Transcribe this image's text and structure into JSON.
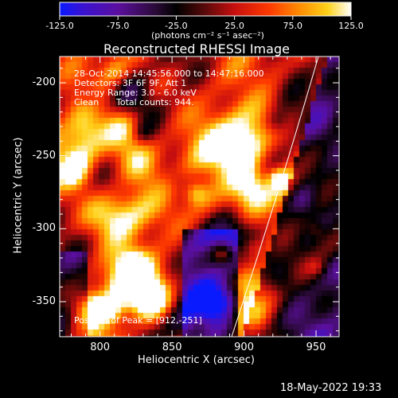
{
  "colorbar": {
    "ticks": [
      "-125.0",
      "-75.0",
      "-25.0",
      "25.0",
      "75.0",
      "125.0"
    ],
    "tick_values": [
      -125,
      -75,
      -25,
      25,
      75,
      125
    ],
    "units_label": "(photons cm⁻² s⁻¹ asec⁻²)",
    "colormap": "black-purple-red-orange-yellow-white (with blue at minimum)"
  },
  "plot": {
    "title": "Reconstructed RHESSI Image",
    "xlabel": "Heliocentric X (arcsec)",
    "ylabel": "Heliocentric Y (arcsec)",
    "x_ticks": [
      "800",
      "850",
      "900",
      "950"
    ],
    "x_tick_values": [
      800,
      850,
      900,
      950
    ],
    "y_ticks": [
      "-200",
      "-250",
      "-300",
      "-350"
    ],
    "y_tick_values": [
      -200,
      -250,
      -300,
      -350
    ],
    "xlim": [
      772,
      966
    ],
    "ylim": [
      -374,
      -182
    ],
    "limb_line_color": "#ffffff"
  },
  "annotations": {
    "time_range": "28-Oct-2014 14:45:56.000 to 14:47:16.000",
    "detectors": "Detectors: 3F 6F 9F, Att 1",
    "energy": "Energy Range: 3.0 - 6.0 keV",
    "clean_label": "Clean",
    "total_counts": "Total counts: 944.",
    "peak": "Position of Peak = [912,-251]"
  },
  "footer": {
    "date": "18-May-2022 19:33"
  }
}
